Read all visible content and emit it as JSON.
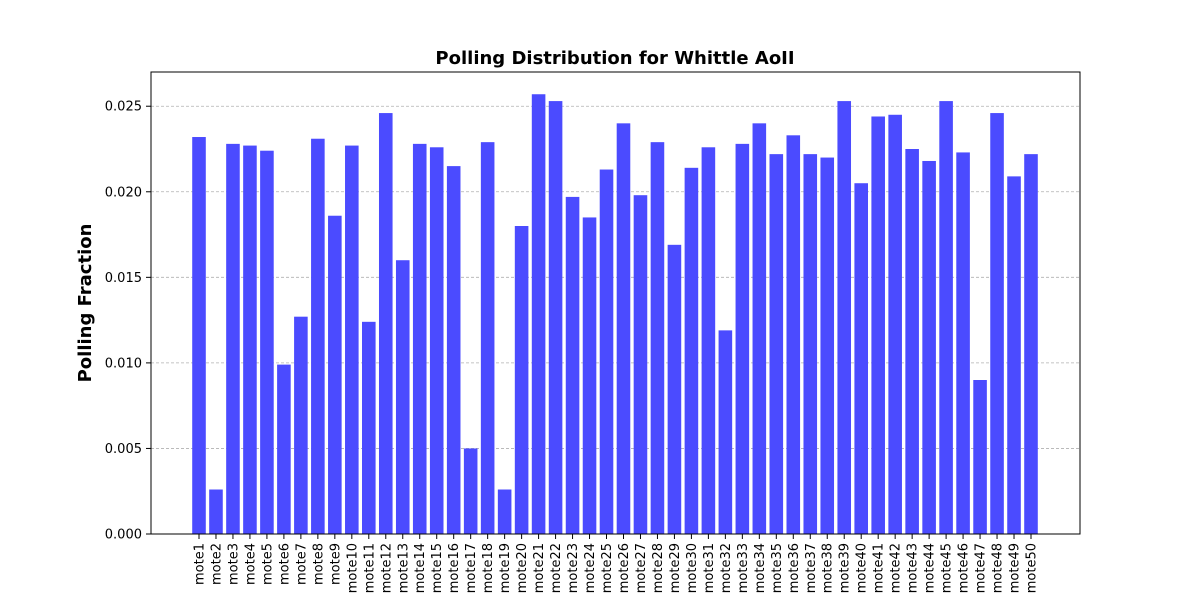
{
  "chart_data": {
    "type": "bar",
    "title": "Polling Distribution for Whittle AoII",
    "xlabel": "",
    "ylabel": "Polling Fraction",
    "ylim": [
      0,
      0.027
    ],
    "yticks": [
      0.0,
      0.005,
      0.01,
      0.015,
      0.02,
      0.025
    ],
    "ytick_labels": [
      "0.000",
      "0.005",
      "0.010",
      "0.015",
      "0.020",
      "0.025"
    ],
    "grid": "y-dashed",
    "bar_color": "#4b4bff",
    "categories": [
      "mote1",
      "mote2",
      "mote3",
      "mote4",
      "mote5",
      "mote6",
      "mote7",
      "mote8",
      "mote9",
      "mote10",
      "mote11",
      "mote12",
      "mote13",
      "mote14",
      "mote15",
      "mote16",
      "mote17",
      "mote18",
      "mote19",
      "mote20",
      "mote21",
      "mote22",
      "mote23",
      "mote24",
      "mote25",
      "mote26",
      "mote27",
      "mote28",
      "mote29",
      "mote30",
      "mote31",
      "mote32",
      "mote33",
      "mote34",
      "mote35",
      "mote36",
      "mote37",
      "mote38",
      "mote39",
      "mote40",
      "mote41",
      "mote42",
      "mote43",
      "mote44",
      "mote45",
      "mote46",
      "mote47",
      "mote48",
      "mote49",
      "mote50"
    ],
    "values": [
      0.0232,
      0.0026,
      0.0228,
      0.0227,
      0.0224,
      0.0099,
      0.0127,
      0.0231,
      0.0186,
      0.0227,
      0.0124,
      0.0246,
      0.016,
      0.0228,
      0.0226,
      0.0215,
      0.005,
      0.0229,
      0.0026,
      0.018,
      0.0257,
      0.0253,
      0.0197,
      0.0185,
      0.0213,
      0.024,
      0.0198,
      0.0229,
      0.0169,
      0.0214,
      0.0226,
      0.0119,
      0.0228,
      0.024,
      0.0222,
      0.0233,
      0.0222,
      0.022,
      0.0253,
      0.0205,
      0.0244,
      0.0245,
      0.0225,
      0.0218,
      0.0253,
      0.0223,
      0.009,
      0.0246,
      0.0209,
      0.0222
    ]
  }
}
